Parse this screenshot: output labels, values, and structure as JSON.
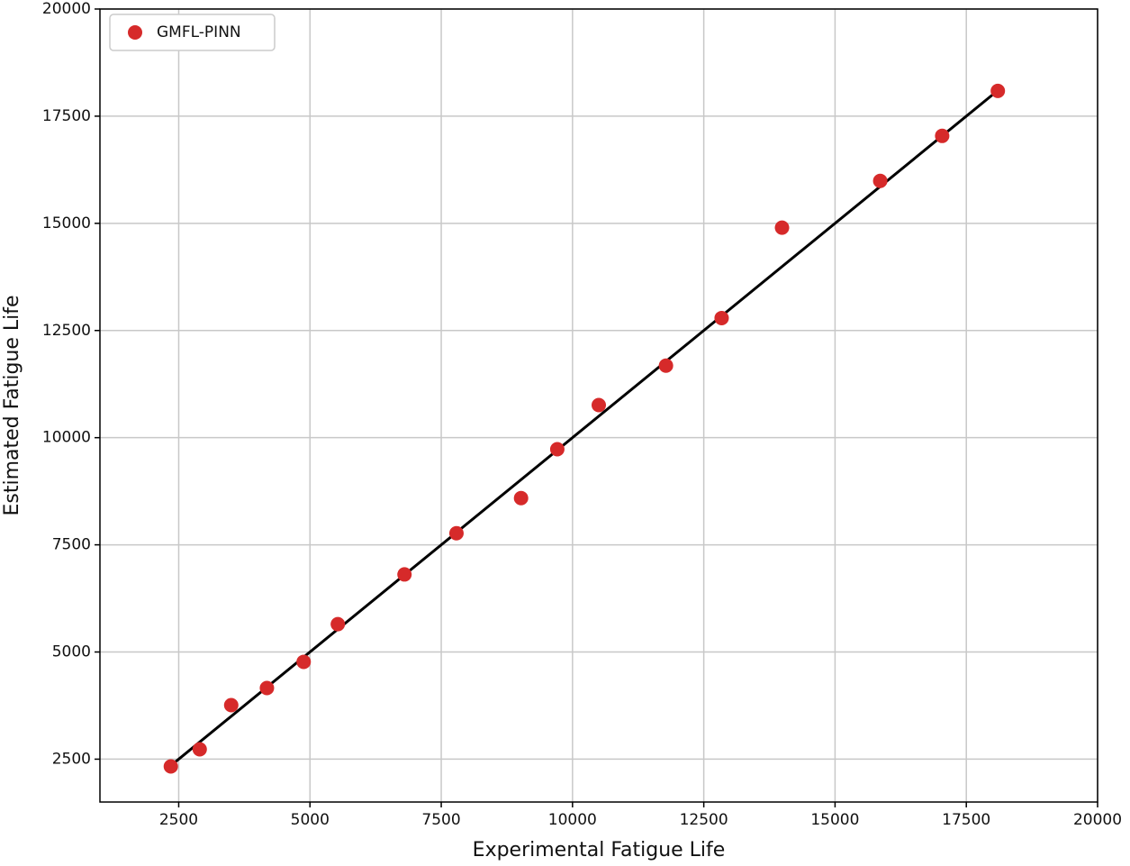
{
  "chart_data": {
    "type": "scatter",
    "xlabel": "Experimental Fatigue Life",
    "ylabel": "Estimated Fatigue Life",
    "xlim": [
      1000,
      20000
    ],
    "ylim": [
      1500,
      20000
    ],
    "xticks": [
      2500,
      5000,
      7500,
      10000,
      12500,
      15000,
      17500,
      20000
    ],
    "yticks": [
      2500,
      5000,
      7500,
      10000,
      12500,
      15000,
      17500,
      20000
    ],
    "grid": true,
    "legend": "upper left",
    "series": [
      {
        "name": "GMFL-PINN",
        "color": "#d62a2a",
        "x": [
          2350,
          2900,
          3500,
          4180,
          4880,
          5530,
          6800,
          7790,
          9020,
          9710,
          10500,
          11780,
          12840,
          13990,
          15860,
          17040,
          18100
        ],
        "values": [
          2330,
          2730,
          3760,
          4160,
          4770,
          5650,
          6810,
          7770,
          8590,
          9730,
          10760,
          11680,
          12790,
          14900,
          15990,
          17040,
          18090
        ]
      }
    ],
    "line": {
      "color": "#000000",
      "x": [
        2350,
        18100
      ],
      "values": [
        2350,
        18100
      ]
    }
  }
}
